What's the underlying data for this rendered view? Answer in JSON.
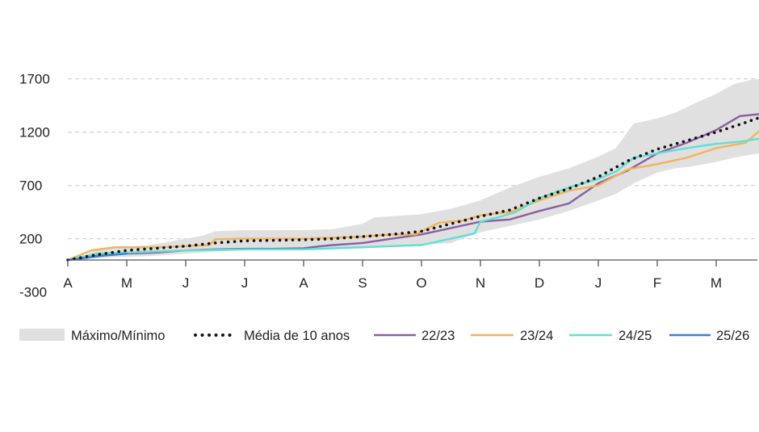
{
  "chart_data": {
    "type": "line",
    "title": "",
    "xlabel": "",
    "ylabel": "",
    "x_categories": [
      "A",
      "M",
      "J",
      "J",
      "A",
      "S",
      "O",
      "N",
      "D",
      "J",
      "F",
      "M"
    ],
    "y_ticks": [
      1700,
      1200,
      700,
      200,
      -300
    ],
    "ylim": [
      -300,
      1700
    ],
    "xlim": [
      0,
      11.75
    ],
    "grid": "horizontal-dashed",
    "legend_position": "bottom",
    "band": {
      "name": "Máximo/Mínimo",
      "color": "#e0e0e0",
      "x": [
        0,
        0.3,
        0.5,
        1,
        1.5,
        2,
        2.3,
        2.5,
        3,
        3.5,
        4,
        4.5,
        5,
        5.2,
        5.5,
        6,
        6.5,
        7,
        7.5,
        8,
        8.5,
        9,
        9.3,
        9.6,
        10,
        10.3,
        10.6,
        11,
        11.3,
        11.6,
        11.75
      ],
      "upper": [
        0,
        50,
        100,
        120,
        150,
        200,
        230,
        270,
        280,
        280,
        280,
        290,
        340,
        400,
        410,
        430,
        480,
        560,
        680,
        780,
        860,
        970,
        1050,
        1280,
        1330,
        1380,
        1460,
        1560,
        1650,
        1690,
        1700
      ],
      "lower": [
        0,
        10,
        20,
        30,
        40,
        60,
        70,
        80,
        90,
        95,
        100,
        105,
        110,
        115,
        125,
        140,
        160,
        260,
        320,
        380,
        460,
        560,
        620,
        720,
        820,
        860,
        880,
        920,
        960,
        990,
        1000
      ]
    },
    "series": [
      {
        "name": "Média de 10 anos",
        "color": "#111111",
        "style": "dotted",
        "x": [
          0,
          0.5,
          1,
          1.5,
          2,
          2.5,
          3,
          3.5,
          4,
          4.5,
          5,
          5.5,
          6,
          6.5,
          7,
          7.5,
          8,
          8.5,
          9,
          9.5,
          10,
          10.5,
          11,
          11.5,
          11.75
        ],
        "values": [
          0,
          50,
          90,
          110,
          130,
          160,
          180,
          185,
          190,
          200,
          220,
          240,
          270,
          340,
          410,
          470,
          580,
          670,
          780,
          930,
          1040,
          1120,
          1200,
          1290,
          1340
        ]
      },
      {
        "name": "22/23",
        "color": "#8a5fa3",
        "style": "solid",
        "x": [
          0,
          0.5,
          1,
          1.5,
          2,
          2.5,
          3,
          3.5,
          4,
          4.3,
          4.5,
          5,
          5.5,
          6,
          6.5,
          7,
          7.5,
          8,
          8.5,
          9,
          9.5,
          10,
          10.5,
          11,
          11.4,
          11.75
        ],
        "values": [
          0,
          40,
          60,
          70,
          90,
          100,
          105,
          105,
          110,
          130,
          140,
          160,
          200,
          240,
          300,
          360,
          380,
          460,
          530,
          720,
          840,
          1000,
          1100,
          1220,
          1350,
          1370
        ]
      },
      {
        "name": "23/24",
        "color": "#f2b45a",
        "style": "solid",
        "x": [
          0,
          0.4,
          0.8,
          1.5,
          2,
          2.4,
          2.5,
          3,
          3.5,
          4,
          4.5,
          5,
          5.5,
          5.9,
          6,
          6.3,
          6.7,
          7,
          7.5,
          8,
          8.5,
          9,
          9.5,
          10,
          10.5,
          11,
          11.5,
          11.75
        ],
        "values": [
          0,
          90,
          120,
          120,
          130,
          140,
          195,
          200,
          200,
          200,
          210,
          220,
          240,
          240,
          270,
          350,
          370,
          420,
          450,
          560,
          650,
          700,
          850,
          900,
          960,
          1050,
          1100,
          1220
        ]
      },
      {
        "name": "24/25",
        "color": "#5ee0d4",
        "style": "solid",
        "x": [
          0,
          0.5,
          1,
          1.5,
          2,
          2.5,
          3,
          3.5,
          4,
          4.5,
          5,
          5.5,
          6,
          6.5,
          6.9,
          7,
          7.3,
          7.6,
          8,
          8.5,
          9,
          9.3,
          9.6,
          10,
          10.5,
          11,
          11.4,
          11.75
        ],
        "values": [
          0,
          60,
          70,
          80,
          90,
          95,
          100,
          100,
          100,
          110,
          120,
          130,
          140,
          200,
          250,
          360,
          400,
          450,
          580,
          680,
          760,
          830,
          960,
          1000,
          1050,
          1090,
          1110,
          1140
        ]
      },
      {
        "name": "25/26",
        "color": "#3f7fd9",
        "style": "solid",
        "x": [
          0,
          0.3,
          0.6,
          1
        ],
        "values": [
          0,
          20,
          40,
          60
        ]
      }
    ]
  }
}
